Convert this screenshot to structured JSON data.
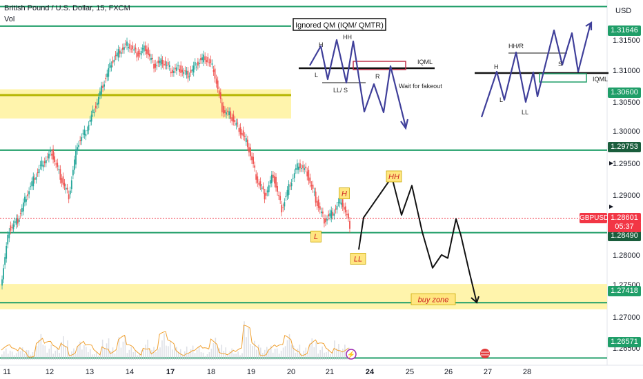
{
  "header": {
    "title": "British Pound / U.S. Dollar, 15, FXCM",
    "indicator": "Vol",
    "currency": "USD"
  },
  "price_tag": {
    "symbol": "GBPUSD",
    "price": "1.28601",
    "countdown": "05:37"
  },
  "colors": {
    "up": "#26a69a",
    "down": "#ef5350",
    "level": "#1f9e68",
    "zone": "#fff3a3",
    "sketch": "#3f3f9a",
    "badge_green": "#1f9e68",
    "badge_red": "#f23645",
    "volume_line": "#f0a030"
  },
  "chart_data": [
    {
      "type": "line",
      "title": "",
      "ylabel": "",
      "xlabel": "",
      "ylim": [
        1.2625,
        1.3205
      ],
      "y_ticks": [
        "1.31500",
        "1.31000",
        "1.30500",
        "1.30000",
        "1.29500",
        "1.29000",
        "1.28000",
        "1.27500",
        "1.27000",
        "1.26500"
      ],
      "x_ticks": [
        "11",
        "12",
        "13",
        "14",
        "17",
        "18",
        "19",
        "20",
        "21",
        "24",
        "25",
        "26",
        "27",
        "28"
      ],
      "series": [
        {
          "values": [
            1.2768,
            1.2855,
            1.2868,
            1.2905,
            1.2935,
            1.2958,
            1.2972,
            1.2935,
            1.2905,
            1.2985,
            1.3005,
            1.3038,
            1.3075,
            1.311,
            1.3128,
            1.3138,
            1.3122,
            1.3132,
            1.3105,
            1.3112,
            1.3098,
            1.31,
            1.309,
            1.3108,
            1.3118,
            1.31,
            1.3038,
            1.3028,
            1.3008,
            1.2985,
            1.2935,
            1.2905,
            1.2938,
            1.2885,
            1.2925,
            1.2955,
            1.294,
            1.29,
            1.2868,
            1.288,
            1.29,
            1.286
          ]
        }
      ],
      "levels": [
        1.3195,
        1.3165,
        1.29753,
        1.2849,
        1.27418,
        1.26571
      ],
      "zones": [
        {
          "from": 1.303,
          "to": 1.306
        },
        {
          "from": 1.2738,
          "to": 1.2762
        }
      ],
      "badges": [
        "1.31646",
        "1.30600",
        "1.29753",
        "1.28490",
        "1.27418",
        "1.26571"
      ],
      "projection": [
        1.2823,
        1.2872,
        1.2934,
        1.2876,
        1.2921,
        1.285,
        1.2795,
        1.2815,
        1.281,
        1.287,
        1.2845,
        1.279,
        1.2742
      ],
      "annotations": [
        {
          "text": "HH",
          "price": 1.2934
        },
        {
          "text": "H",
          "price": 1.2908
        },
        {
          "text": "L",
          "price": 1.2842
        },
        {
          "text": "LL",
          "price": 1.2808
        },
        {
          "text": "buy zone",
          "price": 1.2746
        }
      ]
    },
    {
      "type": "line",
      "title": "Ignored QM (IQM/ QMTR)",
      "labels": [
        "H",
        "HH",
        "L",
        "LL/ S",
        "R",
        "IQML",
        "Wait for fakeout"
      ]
    },
    {
      "type": "line",
      "title": "",
      "labels": [
        "HH/R",
        "H",
        "L",
        "LL",
        "S",
        "IQML"
      ]
    },
    {
      "type": "bar",
      "title": "Vol",
      "series": [
        {
          "values": [
            0.3,
            0.2,
            0.35,
            0.25,
            0.6,
            0.4,
            0.3,
            0.55,
            0.3,
            0.45,
            0.3,
            0.2,
            0.5,
            0.35,
            0.6,
            0.3,
            0.25,
            0.5,
            0.3,
            0.7,
            0.45,
            0.3,
            0.35,
            0.3,
            0.2,
            0.55,
            0.35,
            0.3,
            0.2,
            0.9,
            0.5,
            0.3,
            0.4,
            0.3,
            0.6,
            0.4,
            0.3,
            0.5,
            0.35,
            0.25,
            0.45,
            0.4
          ]
        }
      ]
    }
  ]
}
